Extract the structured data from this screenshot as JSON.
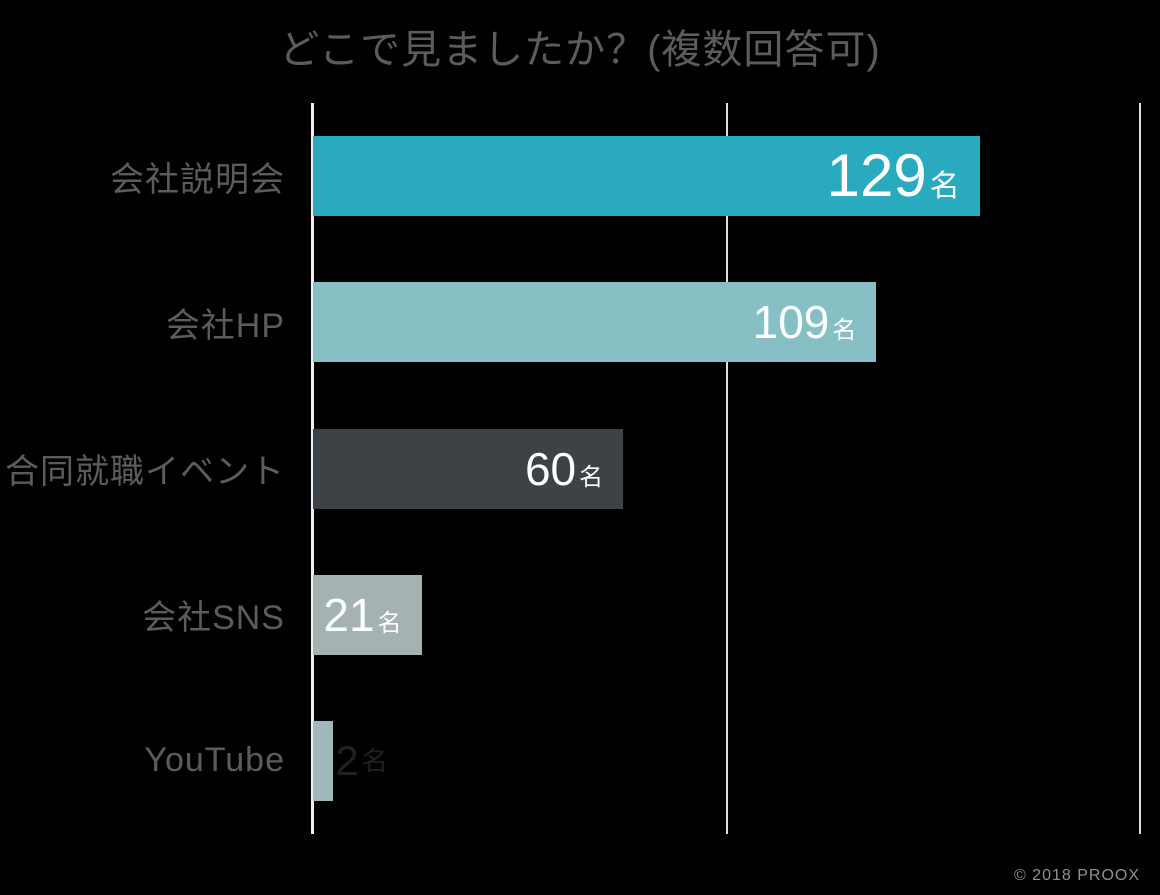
{
  "page": {
    "background_color": "#000000",
    "footer": "© 2018 PROOX",
    "footer_color": "#8f9091"
  },
  "chart_data": {
    "type": "bar",
    "orientation": "horizontal",
    "title": "どこで見ましたか？(複数回答可)",
    "categories": [
      "会社説明会",
      "会社HP",
      "合同就職イベント",
      "会社SNS",
      "YouTube"
    ],
    "values": [
      129,
      109,
      60,
      21,
      2
    ],
    "value_suffix": "名",
    "value_labels": [
      "129名",
      "109名",
      "60名",
      "21名",
      "2名"
    ],
    "xlabel": "",
    "ylabel": "",
    "xlim": [
      0,
      160
    ],
    "gridline_values": [
      0,
      80,
      160
    ],
    "grid": "vertical-only",
    "legend": "none",
    "bar_colors": [
      "#2aaabe",
      "#86c0c5",
      "#3d4247",
      "#a4b2b2",
      "#a0b8bb"
    ],
    "value_label_inside": [
      true,
      true,
      true,
      true,
      false
    ],
    "value_label_colors": [
      "#ffffff",
      "#ffffff",
      "#ffffff",
      "#ffffff",
      "#1f2224"
    ],
    "value_label_emphasis": [
      "large",
      "normal",
      "normal",
      "normal",
      "small"
    ],
    "title_color": "#5b5c5e",
    "category_label_color": "#5b5c5e",
    "gridline_color": "#dedede",
    "axis_line_color": "#f0f0f0"
  }
}
